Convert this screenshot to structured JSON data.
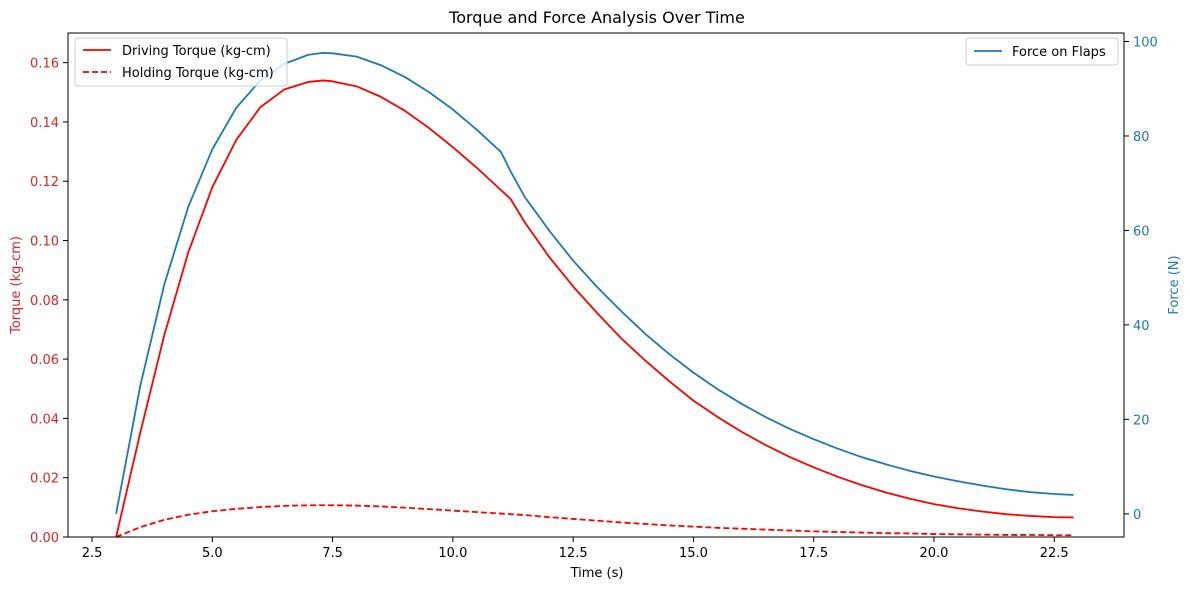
{
  "chart_data": {
    "type": "line",
    "title": "Torque and Force Analysis Over Time",
    "xlabel": "Time (s)",
    "ylabel_left": "Torque (kg-cm)",
    "ylabel_right": "Force (N)",
    "xlim": [
      2.0,
      23.95
    ],
    "ylim_left": [
      0.0,
      0.17
    ],
    "ylim_right": [
      -4.9,
      101.8
    ],
    "x_ticks": [
      2.5,
      5.0,
      7.5,
      10.0,
      12.5,
      15.0,
      17.5,
      20.0,
      22.5
    ],
    "x_tick_labels": [
      "2.5",
      "5.0",
      "7.5",
      "10.0",
      "12.5",
      "15.0",
      "17.5",
      "20.0",
      "22.5"
    ],
    "y_left_ticks": [
      0.0,
      0.02,
      0.04,
      0.06,
      0.08,
      0.1,
      0.12,
      0.14,
      0.16
    ],
    "y_left_tick_labels": [
      "0.00",
      "0.02",
      "0.04",
      "0.06",
      "0.08",
      "0.10",
      "0.12",
      "0.14",
      "0.16"
    ],
    "y_right_ticks": [
      0,
      20,
      40,
      60,
      80,
      100
    ],
    "y_right_tick_labels": [
      "0",
      "20",
      "40",
      "60",
      "80",
      "100"
    ],
    "colors": {
      "left_axis": "#d62728",
      "right_axis": "#1f77b4"
    },
    "left_legend_position": "upper left",
    "right_legend_position": "upper right",
    "series": [
      {
        "name": "Driving Torque (kg-cm)",
        "axis": "left",
        "color": "#ff0000",
        "style": "solid",
        "x": [
          3.0,
          3.5,
          4.0,
          4.5,
          5.0,
          5.5,
          6.0,
          6.5,
          7.0,
          7.3,
          7.5,
          8.0,
          8.5,
          9.0,
          9.5,
          10.0,
          10.5,
          11.0,
          11.2,
          11.5,
          12.0,
          12.5,
          13.0,
          13.5,
          14.0,
          14.5,
          15.0,
          15.5,
          16.0,
          16.5,
          17.0,
          17.5,
          18.0,
          18.5,
          19.0,
          19.5,
          20.0,
          20.5,
          21.0,
          21.5,
          22.0,
          22.5,
          22.9
        ],
        "y": [
          0.0,
          0.035,
          0.068,
          0.096,
          0.118,
          0.134,
          0.145,
          0.151,
          0.1535,
          0.154,
          0.1537,
          0.152,
          0.1485,
          0.1438,
          0.138,
          0.1315,
          0.1245,
          0.117,
          0.114,
          0.106,
          0.0945,
          0.0845,
          0.0755,
          0.067,
          0.0595,
          0.0525,
          0.046,
          0.0405,
          0.0355,
          0.031,
          0.027,
          0.0235,
          0.0203,
          0.0175,
          0.015,
          0.0129,
          0.0111,
          0.0097,
          0.0086,
          0.0077,
          0.0071,
          0.0067,
          0.0066
        ]
      },
      {
        "name": "Holding Torque (kg-cm)",
        "axis": "left",
        "color": "#ff0000",
        "style": "dashed",
        "x": [
          3.0,
          3.5,
          4.0,
          4.5,
          5.0,
          5.5,
          6.0,
          6.5,
          7.0,
          7.5,
          8.0,
          8.5,
          9.0,
          9.5,
          10.0,
          10.5,
          11.0,
          11.5,
          12.0,
          12.5,
          13.0,
          13.5,
          14.0,
          14.5,
          15.0,
          15.5,
          16.0,
          16.5,
          17.0,
          17.5,
          18.0,
          18.5,
          19.0,
          19.5,
          20.0,
          20.5,
          21.0,
          21.5,
          22.0,
          22.5,
          22.9
        ],
        "y": [
          0.0,
          0.0033,
          0.0058,
          0.0075,
          0.0087,
          0.0095,
          0.0101,
          0.0105,
          0.0107,
          0.0107,
          0.0106,
          0.0103,
          0.0099,
          0.0094,
          0.0089,
          0.0084,
          0.0079,
          0.0074,
          0.0067,
          0.0061,
          0.0055,
          0.0049,
          0.0044,
          0.0039,
          0.0035,
          0.0031,
          0.0028,
          0.0025,
          0.0022,
          0.0019,
          0.0017,
          0.0015,
          0.0013,
          0.0012,
          0.001,
          0.0009,
          0.0008,
          0.0007,
          0.0007,
          0.0006,
          0.0006
        ]
      },
      {
        "name": "Force on Flaps",
        "axis": "right",
        "color": "#1f77b4",
        "style": "solid",
        "x": [
          3.0,
          3.5,
          4.0,
          4.5,
          5.0,
          5.5,
          6.0,
          6.5,
          7.0,
          7.3,
          7.5,
          8.0,
          8.5,
          9.0,
          9.5,
          10.0,
          10.5,
          11.0,
          11.2,
          11.5,
          12.0,
          12.5,
          13.0,
          13.5,
          14.0,
          14.5,
          15.0,
          15.5,
          16.0,
          16.5,
          17.0,
          17.5,
          18.0,
          18.5,
          19.0,
          19.5,
          20.0,
          20.5,
          21.0,
          21.5,
          22.0,
          22.5,
          22.9
        ],
        "y": [
          0.0,
          27.0,
          48.5,
          65.0,
          77.2,
          86.0,
          91.8,
          95.3,
          97.2,
          97.6,
          97.5,
          96.8,
          95.0,
          92.5,
          89.3,
          85.6,
          81.3,
          76.6,
          72.5,
          67.0,
          60.0,
          53.6,
          48.0,
          42.9,
          38.1,
          33.8,
          29.9,
          26.4,
          23.3,
          20.5,
          18.0,
          15.8,
          13.8,
          12.0,
          10.5,
          9.1,
          7.9,
          6.9,
          6.0,
          5.2,
          4.6,
          4.2,
          4.0
        ]
      }
    ]
  }
}
